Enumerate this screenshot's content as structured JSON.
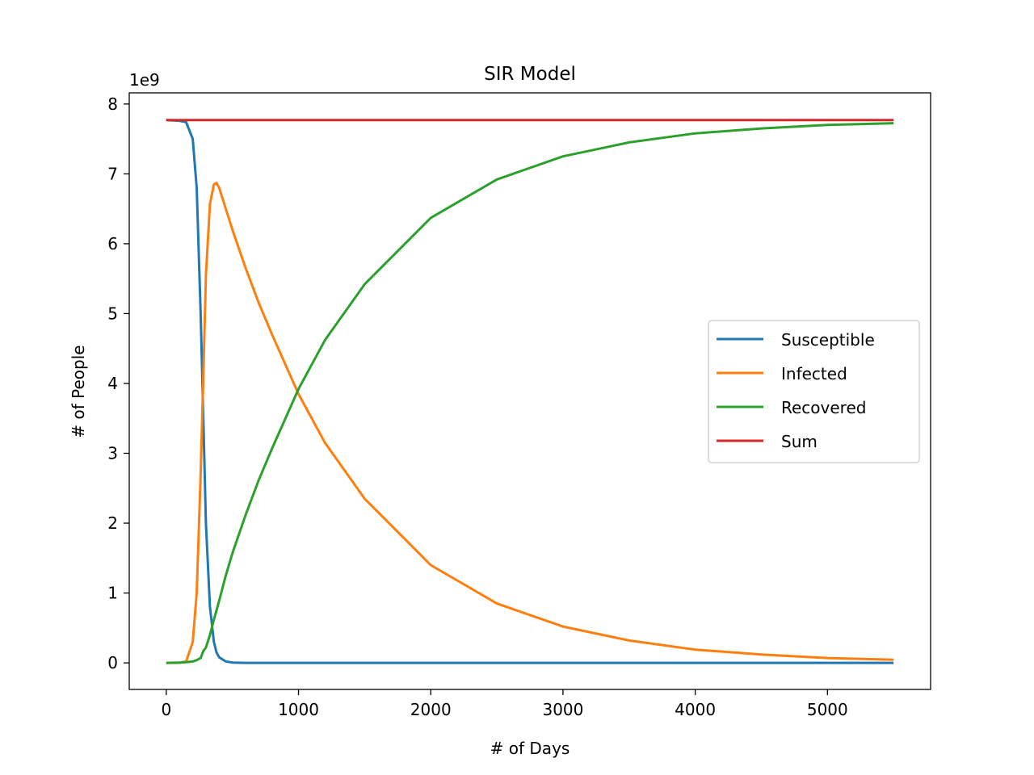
{
  "chart_data": {
    "type": "line",
    "title": "SIR Model",
    "xlabel": "# of Days",
    "ylabel": "# of People",
    "y_offset_label": "1e9",
    "xlim": [
      -280,
      5780
    ],
    "ylim": [
      -0.38,
      8.16
    ],
    "xticks": [
      0,
      1000,
      2000,
      3000,
      4000,
      5000
    ],
    "yticks": [
      0,
      1,
      2,
      3,
      4,
      5,
      6,
      7,
      8
    ],
    "grid": false,
    "legend_position": "center-right",
    "x": [
      0,
      100,
      150,
      200,
      230,
      260,
      280,
      300,
      330,
      360,
      380,
      400,
      450,
      500,
      600,
      700,
      800,
      1000,
      1200,
      1500,
      2000,
      2500,
      3000,
      3500,
      4000,
      4500,
      5000,
      5500
    ],
    "series": [
      {
        "name": "Susceptible",
        "color": "#1f77b4",
        "values": [
          7.77,
          7.76,
          7.74,
          7.5,
          6.8,
          5.0,
          3.5,
          2.0,
          0.8,
          0.3,
          0.15,
          0.08,
          0.02,
          0.005,
          0,
          0,
          0,
          0,
          0,
          0,
          0,
          0,
          0,
          0,
          0,
          0,
          0,
          0
        ]
      },
      {
        "name": "Infected",
        "color": "#ff7f0e",
        "values": [
          0,
          0.001,
          0.02,
          0.3,
          1.0,
          2.7,
          4.1,
          5.55,
          6.57,
          6.85,
          6.87,
          6.8,
          6.5,
          6.2,
          5.65,
          5.15,
          4.7,
          3.85,
          3.15,
          2.35,
          1.4,
          0.85,
          0.52,
          0.32,
          0.19,
          0.12,
          0.07,
          0.045
        ]
      },
      {
        "name": "Recovered",
        "color": "#2ca02c",
        "values": [
          0,
          0.005,
          0.01,
          0.02,
          0.04,
          0.07,
          0.17,
          0.22,
          0.4,
          0.62,
          0.75,
          0.89,
          1.25,
          1.57,
          2.12,
          2.62,
          3.07,
          3.92,
          4.62,
          5.42,
          6.37,
          6.92,
          7.25,
          7.45,
          7.58,
          7.65,
          7.7,
          7.725
        ]
      },
      {
        "name": "Sum",
        "color": "#d62728",
        "values": [
          7.77,
          7.77,
          7.77,
          7.77,
          7.77,
          7.77,
          7.77,
          7.77,
          7.77,
          7.77,
          7.77,
          7.77,
          7.77,
          7.77,
          7.77,
          7.77,
          7.77,
          7.77,
          7.77,
          7.77,
          7.77,
          7.77,
          7.77,
          7.77,
          7.77,
          7.77,
          7.77,
          7.77
        ]
      }
    ]
  }
}
